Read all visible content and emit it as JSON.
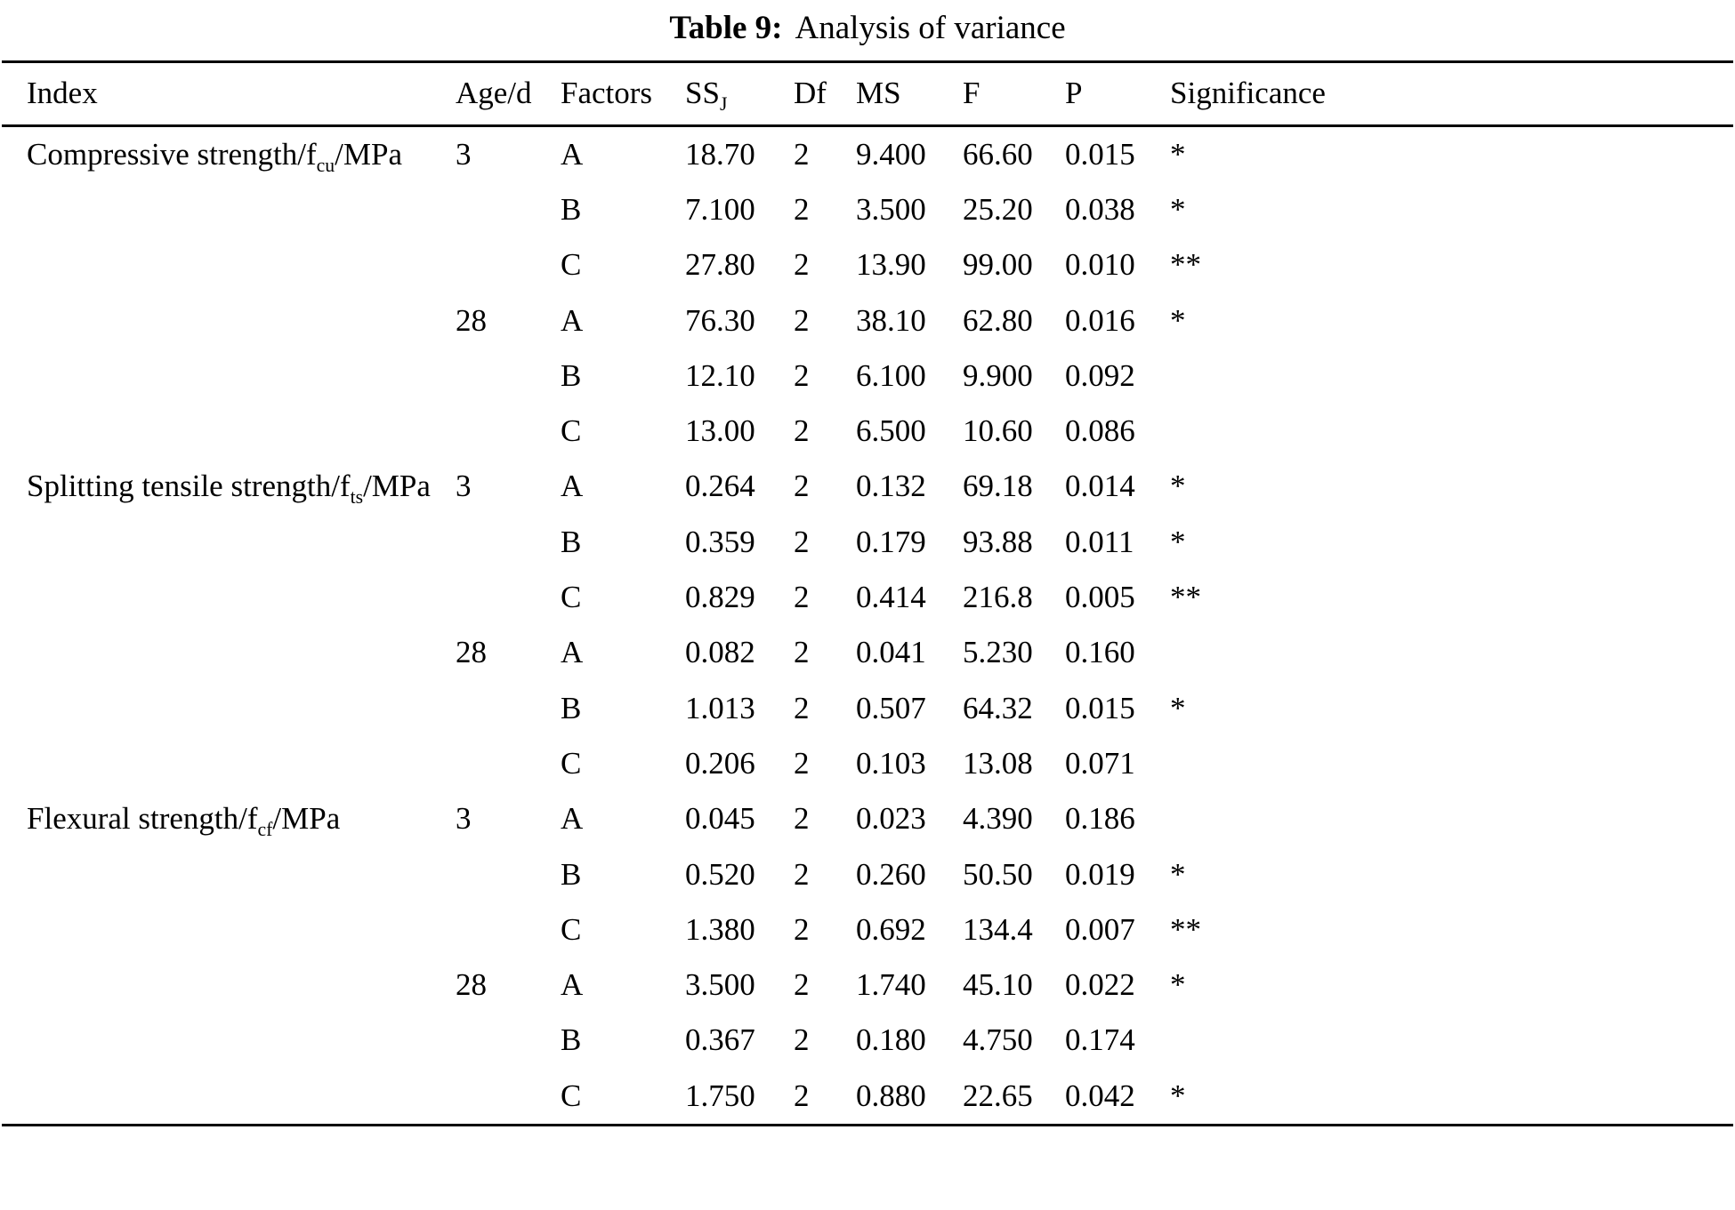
{
  "title": {
    "label": "Table 9:",
    "text": "Analysis of variance"
  },
  "table": {
    "headers": [
      {
        "parts": [
          {
            "text": "Index"
          }
        ]
      },
      {
        "parts": [
          {
            "text": "Age/d"
          }
        ]
      },
      {
        "parts": [
          {
            "text": "Factors"
          }
        ]
      },
      {
        "parts": [
          {
            "text": "SS"
          },
          {
            "sub": "J"
          }
        ]
      },
      {
        "parts": [
          {
            "text": "Df"
          }
        ]
      },
      {
        "parts": [
          {
            "text": "MS"
          }
        ]
      },
      {
        "parts": [
          {
            "text": "F"
          }
        ]
      },
      {
        "parts": [
          {
            "text": "P"
          }
        ]
      },
      {
        "parts": [
          {
            "text": "Significance"
          }
        ]
      }
    ],
    "rows": [
      {
        "index": {
          "parts": [
            {
              "text": "Compressive strength/f"
            },
            {
              "sub": "cu"
            },
            {
              "text": "/MPa"
            }
          ]
        },
        "age": "3",
        "factor": "A",
        "ss": "18.70",
        "df": "2",
        "ms": "9.400",
        "f": "66.60",
        "p": "0.015",
        "sig": "*"
      },
      {
        "index": "",
        "age": "",
        "factor": "B",
        "ss": "7.100",
        "df": "2",
        "ms": "3.500",
        "f": "25.20",
        "p": "0.038",
        "sig": "*"
      },
      {
        "index": "",
        "age": "",
        "factor": "C",
        "ss": "27.80",
        "df": "2",
        "ms": "13.90",
        "f": "99.00",
        "p": "0.010",
        "sig": "**"
      },
      {
        "index": "",
        "age": "28",
        "factor": "A",
        "ss": "76.30",
        "df": "2",
        "ms": "38.10",
        "f": "62.80",
        "p": "0.016",
        "sig": "*"
      },
      {
        "index": "",
        "age": "",
        "factor": "B",
        "ss": "12.10",
        "df": "2",
        "ms": "6.100",
        "f": "9.900",
        "p": "0.092",
        "sig": ""
      },
      {
        "index": "",
        "age": "",
        "factor": "C",
        "ss": "13.00",
        "df": "2",
        "ms": "6.500",
        "f": "10.60",
        "p": "0.086",
        "sig": ""
      },
      {
        "index": {
          "parts": [
            {
              "text": "Splitting tensile strength/f"
            },
            {
              "sub": "ts"
            },
            {
              "text": "/MPa"
            }
          ]
        },
        "age": "3",
        "factor": "A",
        "ss": "0.264",
        "df": "2",
        "ms": "0.132",
        "f": "69.18",
        "p": "0.014",
        "sig": "*"
      },
      {
        "index": "",
        "age": "",
        "factor": "B",
        "ss": "0.359",
        "df": "2",
        "ms": "0.179",
        "f": "93.88",
        "p": "0.011",
        "sig": "*"
      },
      {
        "index": "",
        "age": "",
        "factor": "C",
        "ss": "0.829",
        "df": "2",
        "ms": "0.414",
        "f": "216.8",
        "p": "0.005",
        "sig": "**"
      },
      {
        "index": "",
        "age": "28",
        "factor": "A",
        "ss": "0.082",
        "df": "2",
        "ms": "0.041",
        "f": "5.230",
        "p": "0.160",
        "sig": ""
      },
      {
        "index": "",
        "age": "",
        "factor": "B",
        "ss": "1.013",
        "df": "2",
        "ms": "0.507",
        "f": "64.32",
        "p": "0.015",
        "sig": "*"
      },
      {
        "index": "",
        "age": "",
        "factor": "C",
        "ss": "0.206",
        "df": "2",
        "ms": "0.103",
        "f": "13.08",
        "p": "0.071",
        "sig": ""
      },
      {
        "index": {
          "parts": [
            {
              "text": "Flexural strength/f"
            },
            {
              "sub": "cf"
            },
            {
              "text": "/MPa"
            }
          ]
        },
        "age": "3",
        "factor": "A",
        "ss": "0.045",
        "df": "2",
        "ms": "0.023",
        "f": "4.390",
        "p": "0.186",
        "sig": ""
      },
      {
        "index": "",
        "age": "",
        "factor": "B",
        "ss": "0.520",
        "df": "2",
        "ms": "0.260",
        "f": "50.50",
        "p": "0.019",
        "sig": "*"
      },
      {
        "index": "",
        "age": "",
        "factor": "C",
        "ss": "1.380",
        "df": "2",
        "ms": "0.692",
        "f": "134.4",
        "p": "0.007",
        "sig": "**"
      },
      {
        "index": "",
        "age": "28",
        "factor": "A",
        "ss": "3.500",
        "df": "2",
        "ms": "1.740",
        "f": "45.10",
        "p": "0.022",
        "sig": "*"
      },
      {
        "index": "",
        "age": "",
        "factor": "B",
        "ss": "0.367",
        "df": "2",
        "ms": "0.180",
        "f": "4.750",
        "p": "0.174",
        "sig": ""
      },
      {
        "index": "",
        "age": "",
        "factor": "C",
        "ss": "1.750",
        "df": "2",
        "ms": "0.880",
        "f": "22.65",
        "p": "0.042",
        "sig": "*"
      }
    ]
  }
}
